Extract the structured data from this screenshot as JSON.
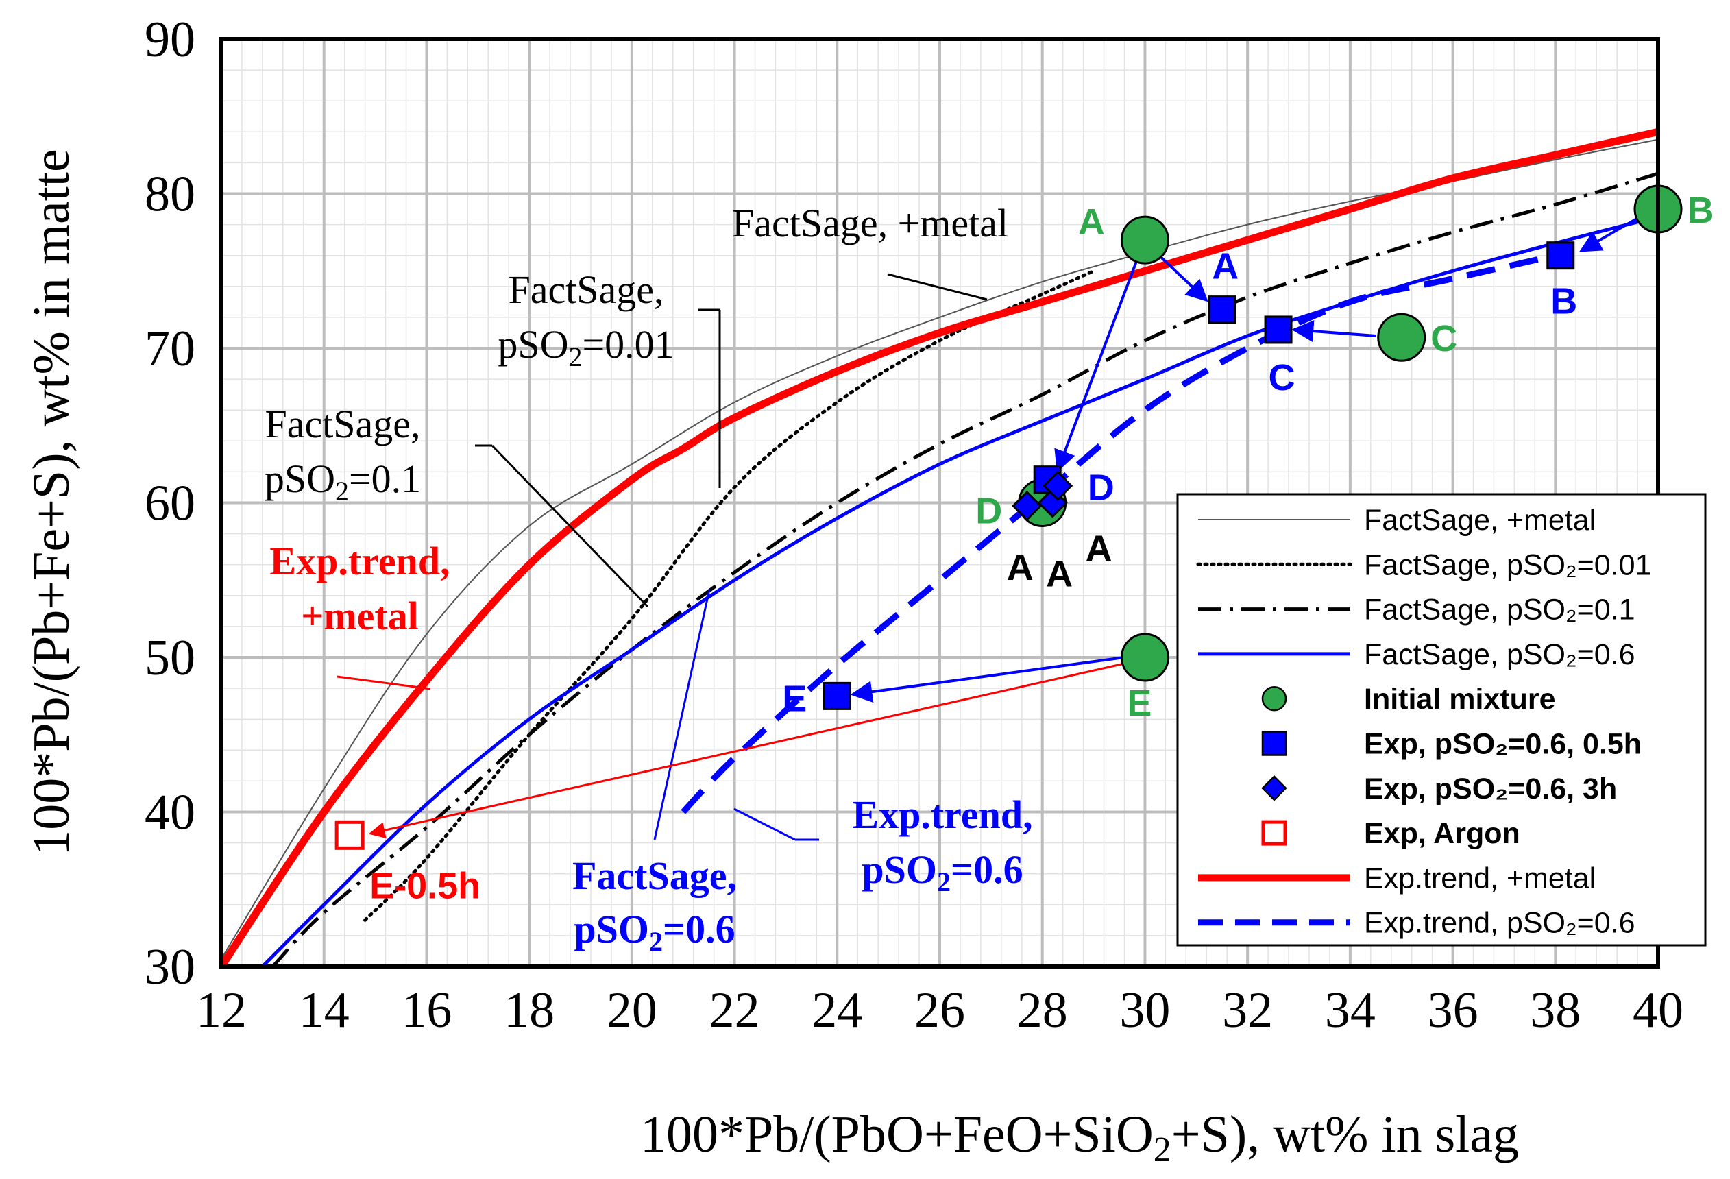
{
  "chart_data": {
    "type": "scatter",
    "title": "",
    "xlabel": "100*Pb/(PbO+FeO+SiO2+S), wt% in slag",
    "ylabel": "100*Pb/(Pb+Fe+S), wt% in matte",
    "xlim": [
      12,
      40
    ],
    "ylim": [
      30,
      90
    ],
    "x_ticks": [
      "12",
      "14",
      "16",
      "18",
      "20",
      "22",
      "24",
      "26",
      "28",
      "30",
      "32",
      "34",
      "36",
      "38",
      "40"
    ],
    "y_ticks": [
      "30",
      "40",
      "50",
      "60",
      "70",
      "80",
      "90"
    ],
    "grid": true,
    "legend_position": "bottom-right",
    "colors": {
      "green": "#2ea84a",
      "blue": "#0000ff",
      "red": "#ff0000",
      "black": "#000000",
      "grid": "#bdbdbd"
    },
    "series": [
      {
        "name": "FactSage, +metal",
        "style": "thin-gray",
        "x": [
          12,
          14,
          16,
          18,
          20,
          22,
          24,
          26,
          28,
          30,
          32,
          34,
          36,
          38,
          40
        ],
        "y": [
          30.5,
          41.5,
          51.5,
          58.5,
          62.5,
          66.5,
          69.5,
          72,
          74.3,
          76.2,
          78,
          79.5,
          80.8,
          82.2,
          83.5
        ]
      },
      {
        "name": "FactSage, pSO2=0.01",
        "style": "dotted",
        "x": [
          14.8,
          16,
          18,
          20,
          22,
          24,
          26,
          28,
          29
        ],
        "y": [
          33,
          37,
          45,
          52.5,
          61,
          66.5,
          70.5,
          73.5,
          75
        ]
      },
      {
        "name": "FactSage, pSO2=0.1",
        "style": "dashdot",
        "x": [
          13,
          14,
          16,
          18,
          20,
          22,
          24,
          26,
          28,
          30,
          32,
          34,
          36,
          38,
          40
        ],
        "y": [
          30,
          33.5,
          39,
          45,
          50.5,
          55.5,
          60,
          63.8,
          67,
          70.5,
          73.3,
          75.5,
          77.5,
          79.3,
          81.3
        ]
      },
      {
        "name": "FactSage, pSO2=0.6",
        "style": "blue-solid",
        "x": [
          12.8,
          14,
          16,
          18,
          20,
          22,
          24,
          26,
          28,
          30,
          32,
          34,
          36,
          38,
          40
        ],
        "y": [
          30,
          34,
          40.5,
          46,
          50.5,
          55,
          59,
          62.5,
          65.3,
          68,
          70.8,
          73,
          75,
          76.8,
          78.5
        ]
      },
      {
        "name": "Exp.trend, +metal",
        "style": "red-thick",
        "x": [
          12,
          14,
          16,
          18,
          20,
          21,
          22,
          24,
          26,
          28,
          30,
          32,
          34,
          36,
          38,
          40
        ],
        "y": [
          30,
          40,
          48.5,
          56,
          61.5,
          63.5,
          65.5,
          68.5,
          71,
          73,
          75,
          77,
          79,
          81,
          82.5,
          84
        ]
      },
      {
        "name": "Exp.trend, pSO2=0.6",
        "style": "blue-dashed",
        "x": [
          21,
          22,
          24,
          26,
          28,
          30,
          32,
          34,
          36,
          38
        ],
        "y": [
          40,
          43.5,
          49.5,
          55,
          60.5,
          66,
          70,
          73,
          74.5,
          76
        ]
      }
    ],
    "initial_mixture": [
      {
        "label": "A",
        "x": 30,
        "y": 77
      },
      {
        "label": "B",
        "x": 40,
        "y": 79
      },
      {
        "label": "C",
        "x": 35,
        "y": 70.7
      },
      {
        "label": "D",
        "x": 28,
        "y": 60
      },
      {
        "label": "E",
        "x": 30,
        "y": 50
      }
    ],
    "exp_05h": [
      {
        "label": "A",
        "x": 31.5,
        "y": 72.5
      },
      {
        "label": "B",
        "x": 38.1,
        "y": 76
      },
      {
        "label": "C",
        "x": 32.6,
        "y": 71.2
      },
      {
        "label": "D",
        "x": 28.1,
        "y": 61.5
      },
      {
        "label": "E",
        "x": 24,
        "y": 47.5
      }
    ],
    "exp_3h": [
      {
        "label": "A",
        "x": 27.7,
        "y": 59.8
      },
      {
        "label": "A",
        "x": 28.2,
        "y": 60
      },
      {
        "label": "A",
        "x": 28.3,
        "y": 61.1
      }
    ],
    "exp_argon": [
      {
        "label": "E-0.5h",
        "x": 14.5,
        "y": 38.5
      }
    ],
    "annotations": {
      "fs_metal": "FactSage, +metal",
      "fs_001_line1": "FactSage,",
      "fs_001_line2": "pSO",
      "fs_001_sub": "2",
      "fs_001_val": "=0.01",
      "fs_01_line1": "FactSage,",
      "fs_01_line2": "pSO",
      "fs_01_sub": "2",
      "fs_01_val": "=0.1",
      "exp_metal_line1": "Exp.trend,",
      "exp_metal_line2": "+metal",
      "fs_06_line1": "FactSage,",
      "fs_06_line2": "pSO",
      "fs_06_sub": "2",
      "fs_06_val": "=0.6",
      "exp_06_line1": "Exp.trend,",
      "exp_06_line2": "pSO",
      "exp_06_sub": "2",
      "exp_06_val": "=0.6",
      "argon_label": "E-0.5h",
      "xlabel_main": "100*Pb/(PbO+FeO+SiO",
      "xlabel_sub": "2",
      "xlabel_rest": "+S), wt% in slag"
    },
    "legend": [
      {
        "text": "FactSage, +metal",
        "style": "thin-gray"
      },
      {
        "text": "FactSage, pSO₂=0.01",
        "style": "dotted"
      },
      {
        "text": "FactSage, pSO₂=0.1",
        "style": "dashdot"
      },
      {
        "text": "FactSage, pSO₂=0.6",
        "style": "blue-solid"
      },
      {
        "text": "Initial mixture",
        "style": "green-circle"
      },
      {
        "text": "Exp, pSO₂=0.6, 0.5h",
        "style": "blue-square"
      },
      {
        "text": "Exp, pSO₂=0.6, 3h",
        "style": "blue-diamond"
      },
      {
        "text": "Exp, Argon",
        "style": "red-open-square"
      },
      {
        "text": "Exp.trend, +metal",
        "style": "red-thick"
      },
      {
        "text": "Exp.trend, pSO₂=0.6",
        "style": "blue-dashed"
      }
    ]
  }
}
